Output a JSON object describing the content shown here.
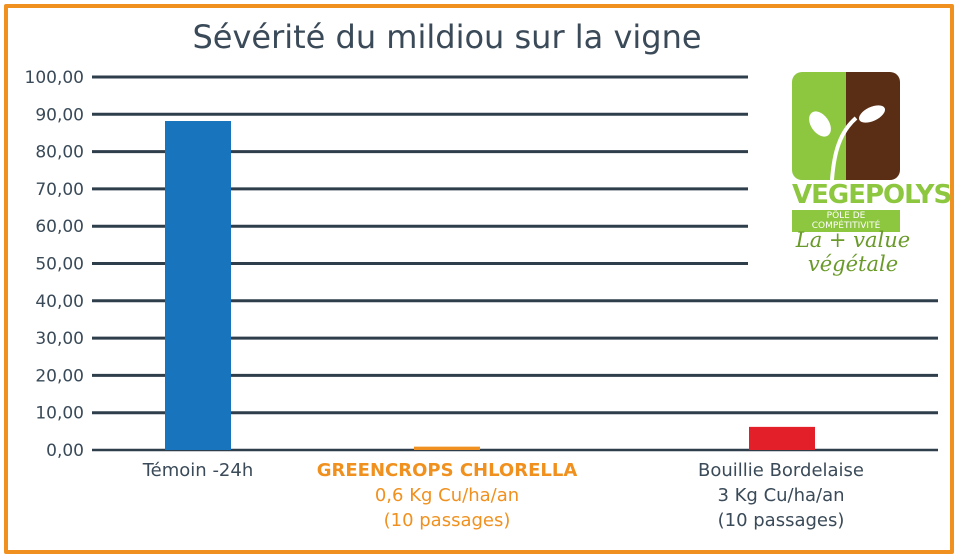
{
  "chart_data": {
    "type": "bar",
    "title": "Sévérité du mildiou sur la vigne",
    "categories": [
      {
        "line1": "Témoin -24h",
        "line2": "",
        "line3": ""
      },
      {
        "line1": "GREENCROPS CHLORELLA",
        "line2": "0,6 Kg Cu/ha/an",
        "line3": "(10 passages)"
      },
      {
        "line1": "Bouillie  Bordelaise",
        "line2": "3 Kg Cu/ha/an",
        "line3": "(10 passages)"
      }
    ],
    "values": [
      88.2,
      0.9,
      6.2
    ],
    "bar_colors": [
      "#1874bc",
      "#f0911f",
      "#e3202a"
    ],
    "ylim": [
      0,
      100
    ],
    "yticks": [
      "0,00",
      "10,00",
      "20,00",
      "30,00",
      "40,00",
      "50,00",
      "60,00",
      "70,00",
      "80,00",
      "90,00",
      "100,00"
    ],
    "grid": true,
    "legend": "none"
  },
  "logo": {
    "name": "VEGEPOLYS",
    "subtitle": "PÔLE DE COMPÉTITIVITÉ",
    "tagline": "La + value végétale",
    "colors": {
      "green": "#8dc63f",
      "brown": "#5a2e14"
    }
  },
  "colors": {
    "frame": "#f0911f",
    "text": "#3a4a58",
    "gridline": "#2f3e4b"
  }
}
